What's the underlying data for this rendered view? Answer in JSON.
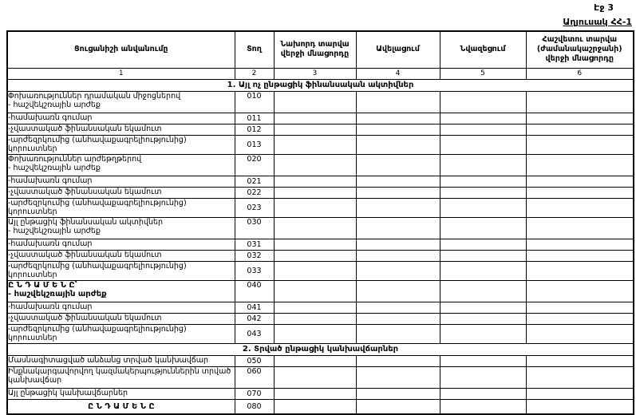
{
  "page": {
    "page_label": "Էջ 3",
    "table_label": "Աղյուսակ ՀՀ-1"
  },
  "table": {
    "columns": [
      {
        "header": "Ցուցանիշի անվանումը",
        "num": "1"
      },
      {
        "header": "Տող",
        "num": "2"
      },
      {
        "header": "Նախորդ տարվա վերջի մնացորդը",
        "num": "3"
      },
      {
        "header": "Ավելացում",
        "num": "4"
      },
      {
        "header": "Նվազեցում",
        "num": "5"
      },
      {
        "header": "Հաշվետու տարվա (ժամանակաշրջանի) վերջի մնացորդը",
        "num": "6"
      }
    ],
    "rows": [
      {
        "kind": "section",
        "label": "1. Այլ ոչ ընթացիկ ֆինանսական ակտիվներ"
      },
      {
        "kind": "item2",
        "label": "Փոխառություններ դրամական միջոցներով",
        "label2": "- հաշվեկշռային արժեք",
        "code": "010",
        "values": [
          "",
          "",
          "",
          ""
        ]
      },
      {
        "kind": "item",
        "label": "-համախառն գումար",
        "code": "011",
        "values": [
          "",
          "",
          "",
          ""
        ]
      },
      {
        "kind": "item",
        "label": "-չվաստակած ֆինանսական եկամուտ",
        "code": "012",
        "values": [
          "",
          "",
          "",
          ""
        ]
      },
      {
        "kind": "item",
        "label": "-արժեզրկումից (անհավաքագրելիությունից) կորուստներ",
        "code": "013",
        "values": [
          "",
          "",
          "",
          ""
        ]
      },
      {
        "kind": "item2",
        "label": "Փոխառություններ արժեթղթերով",
        "label2": "- հաշվեկշռային արժեք",
        "code": "020",
        "values": [
          "",
          "",
          "",
          ""
        ]
      },
      {
        "kind": "item",
        "label": "-համախառն գումար",
        "code": "021",
        "values": [
          "",
          "",
          "",
          ""
        ]
      },
      {
        "kind": "item",
        "label": "-չվաստակած ֆինանսական եկամուտ",
        "code": "022",
        "values": [
          "",
          "",
          "",
          ""
        ]
      },
      {
        "kind": "item",
        "label": "-արժեզրկումից (անհավաքագրելիությունից) կորուստներ",
        "code": "023",
        "values": [
          "",
          "",
          "",
          ""
        ]
      },
      {
        "kind": "item2",
        "label": "Այլ ընթացիկ ֆինանսական ակտիվներ",
        "label2": "- հաշվեկշռային արժեք",
        "code": "030",
        "values": [
          "",
          "",
          "",
          ""
        ]
      },
      {
        "kind": "item",
        "label": "-համախառն գումար",
        "code": "031",
        "values": [
          "",
          "",
          "",
          ""
        ]
      },
      {
        "kind": "item",
        "label": "-չվաստակած ֆինանսական եկամուտ",
        "code": "032",
        "values": [
          "",
          "",
          "",
          ""
        ]
      },
      {
        "kind": "item",
        "label": "-արժեզրկումից (անհավաքագրելիությունից) կորուստներ",
        "code": "033",
        "values": [
          "",
          "",
          "",
          ""
        ]
      },
      {
        "kind": "total2",
        "label": "Ը Ն Դ Ա Մ Ե Ն Ը՝",
        "label2": "- հաշվեկշռային արժեք",
        "code": "040",
        "values": [
          "",
          "",
          "",
          ""
        ]
      },
      {
        "kind": "item",
        "label": "-համախառն գումար",
        "code": "041",
        "values": [
          "",
          "",
          "",
          ""
        ]
      },
      {
        "kind": "item",
        "label": "-չվաստակած ֆինանսական եկամուտ",
        "code": "042",
        "values": [
          "",
          "",
          "",
          ""
        ]
      },
      {
        "kind": "item",
        "label": "-արժեզրկումից (անհավաքագրելիությունից) կորուստներ",
        "code": "043",
        "values": [
          "",
          "",
          "",
          ""
        ]
      },
      {
        "kind": "section",
        "label": "2. Տրված ընթացիկ կանխավճարներ"
      },
      {
        "kind": "item",
        "label": "Մասնագիտացված անձանց տրված կանխավճար",
        "code": "050",
        "values": [
          "",
          "",
          "",
          ""
        ]
      },
      {
        "kind": "item2w",
        "label": "Ինքնակարգավորվող կազմակերպություններին տրված կանխավճար",
        "code": "060",
        "values": [
          "",
          "",
          "",
          ""
        ]
      },
      {
        "kind": "item",
        "label": "Այլ ընթացիկ կանխավճարներ",
        "code": "070",
        "values": [
          "",
          "",
          "",
          ""
        ]
      },
      {
        "kind": "total-final",
        "label": "Ը Ն Դ Ա Մ Ե Ն Ը",
        "code": "080",
        "values": [
          "",
          "",
          "",
          ""
        ]
      }
    ]
  }
}
